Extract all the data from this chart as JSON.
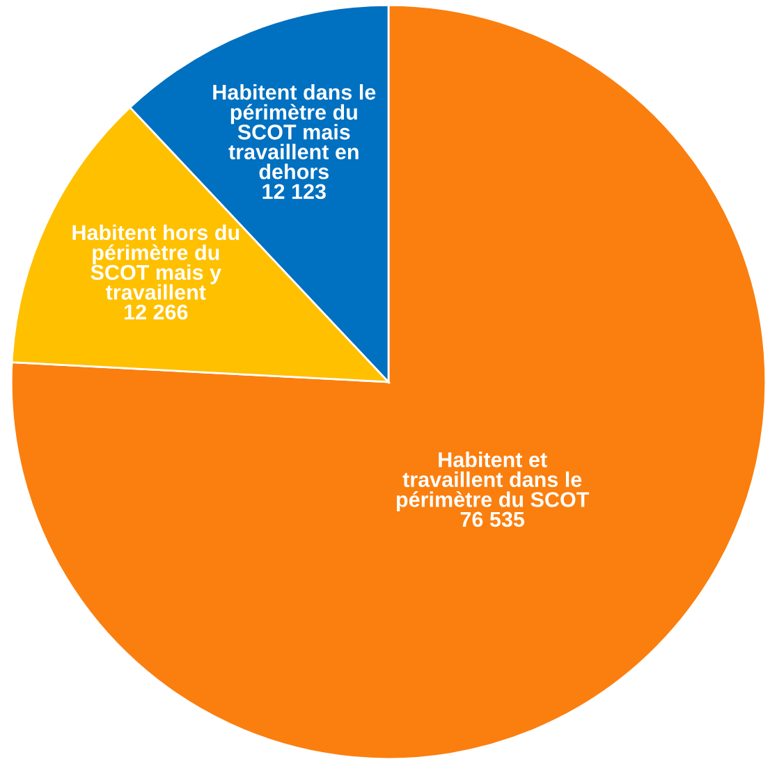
{
  "chart_data": {
    "type": "pie",
    "categories": [
      "Habitent et\ntravaillent dans le\npérimètre du SCOT",
      "Habitent hors du\npérimètre du\nSCOT mais y\ntravaillent",
      "Habitent dans le\npérimètre du\nSCOT mais\ntravaillent en\ndehors"
    ],
    "values": [
      76535,
      12266,
      12123
    ],
    "value_labels": [
      "76 535",
      "12 266",
      "12 123"
    ],
    "colors": [
      "#fa7f0f",
      "#ffc000",
      "#0070c0"
    ],
    "legend": false
  }
}
